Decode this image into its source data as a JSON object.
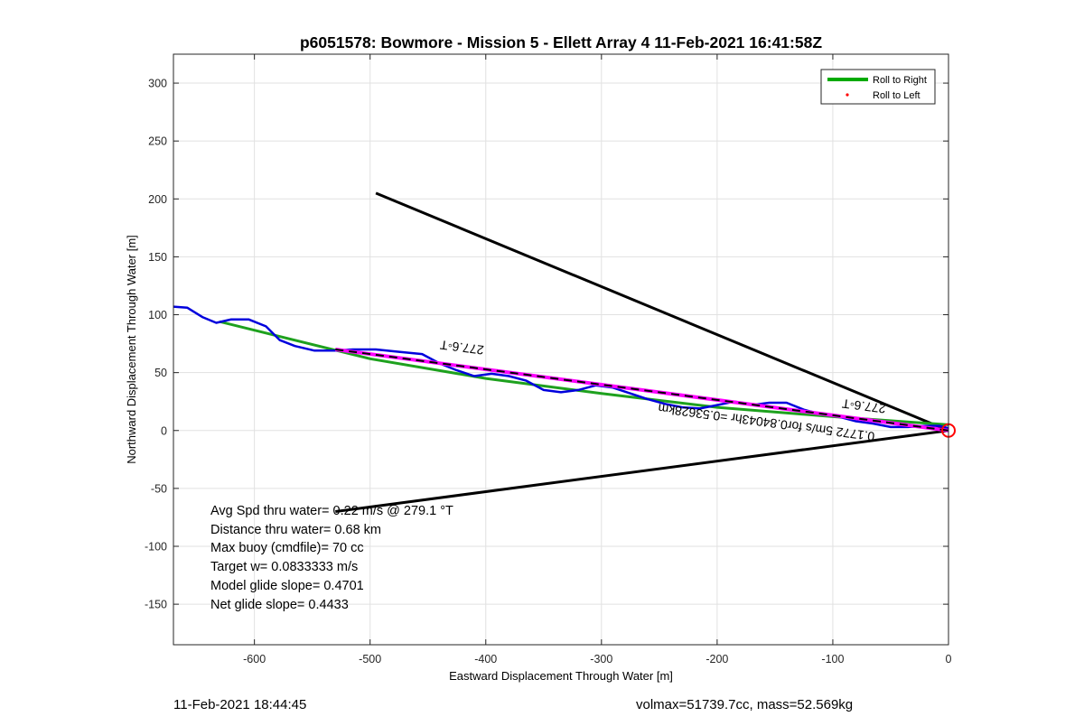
{
  "chart_data": {
    "type": "line",
    "title": "p6051578: Bowmore - Mission 5 - Ellett Array 4 11-Feb-2021 16:41:58Z",
    "xlabel": "Eastward Displacement Through Water [m]",
    "ylabel": "Northward Displacement Through Water [m]",
    "xlim": [
      -670,
      0
    ],
    "ylim": [
      -185,
      325
    ],
    "xticks": [
      -600,
      -500,
      -400,
      -300,
      -200,
      -100,
      0
    ],
    "yticks": [
      -150,
      -100,
      -50,
      0,
      50,
      100,
      150,
      200,
      250,
      300
    ],
    "grid": true,
    "legend_position": "top-right",
    "legend": [
      {
        "name": "Roll to Right",
        "style": "solid-line",
        "color": "#00aa00"
      },
      {
        "name": "Roll to Left",
        "style": "dot",
        "color": "#ff0000"
      }
    ],
    "series": [
      {
        "name": "Roll to Right",
        "color": "#1ea11e",
        "x": [
          -630,
          -500,
          -400,
          -300,
          -200,
          -100,
          0
        ],
        "y": [
          94,
          62,
          45,
          32,
          20,
          12,
          5
        ]
      },
      {
        "name": "Roll to Left",
        "color": "#ff0000",
        "x": [],
        "y": []
      }
    ],
    "glider_track": {
      "color": "#0000dd",
      "x": [
        -670,
        -658,
        -645,
        -633,
        -620,
        -605,
        -590,
        -578,
        -565,
        -548,
        -530,
        -515,
        -495,
        -475,
        -455,
        -440,
        -425,
        -410,
        -395,
        -380,
        -365,
        -350,
        -335,
        -320,
        -305,
        -290,
        -275,
        -260,
        -245,
        -230,
        -215,
        -200,
        -185,
        -170,
        -155,
        -140,
        -125,
        -110,
        -95,
        -80,
        -65,
        -50,
        -35,
        -20,
        -8,
        0
      ],
      "y": [
        107,
        106,
        98,
        93,
        96,
        96,
        90,
        78,
        73,
        69,
        69,
        70,
        70,
        68,
        66,
        58,
        52,
        47,
        49,
        47,
        43,
        35,
        33,
        35,
        39,
        37,
        32,
        27,
        23,
        20,
        19,
        22,
        25,
        22,
        24,
        24,
        18,
        14,
        12,
        8,
        6,
        3,
        3,
        4,
        4,
        2
      ]
    },
    "current_arrow": {
      "color": "#ff00ff",
      "x": [
        -530,
        0
      ],
      "y": [
        70,
        0
      ]
    },
    "dashed_line": {
      "color": "#000000",
      "x": [
        -530,
        0
      ],
      "y": [
        70,
        0
      ]
    },
    "wedge_lines": [
      {
        "x": [
          -495,
          0
        ],
        "y": [
          205,
          0
        ]
      },
      {
        "x": [
          -530,
          0
        ],
        "y": [
          -70,
          0
        ]
      }
    ],
    "end_marker": {
      "x": 0,
      "y": 0,
      "color": "#ff0000"
    },
    "annotations": {
      "heading_upper": "277.6◦T",
      "heading_lower": "277.6◦T",
      "current_label": "0.1772 5m/s for0.84043hr =0.53628km"
    }
  },
  "stats": {
    "line1": "Avg Spd thru water=  0.22 m/s @ 279.1 °T",
    "line2": "Distance thru water=  0.68 km",
    "line3": "Max buoy (cmdfile)= 70 cc",
    "line4": "Target w= 0.0833333 m/s",
    "line5": "Model glide slope= 0.4701",
    "line6": "Net glide slope= 0.4433"
  },
  "footer": {
    "left": "11-Feb-2021 18:44:45",
    "right": "volmax=51739.7cc, mass=52.569kg"
  }
}
